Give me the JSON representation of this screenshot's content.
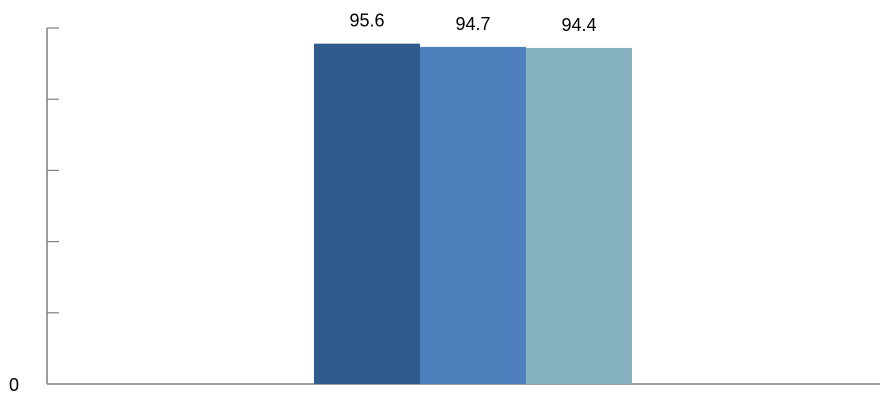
{
  "chart_data": {
    "type": "bar",
    "categories": [
      ""
    ],
    "series": [
      {
        "values": [
          95.6
        ],
        "color": "#2f5b8d"
      },
      {
        "values": [
          94.7
        ],
        "color": "#4e80bd"
      },
      {
        "values": [
          94.4
        ],
        "color": "#86b2c2"
      }
    ],
    "data_labels": [
      "95.6",
      "94.7",
      "94.4"
    ],
    "title": "",
    "xlabel": "",
    "ylabel": "",
    "ylim": [
      0,
      100
    ],
    "y_ticks": [
      0,
      20,
      40,
      60,
      80,
      100
    ],
    "y_tick_labels": [
      "0"
    ],
    "grid": false,
    "legend": "none"
  }
}
